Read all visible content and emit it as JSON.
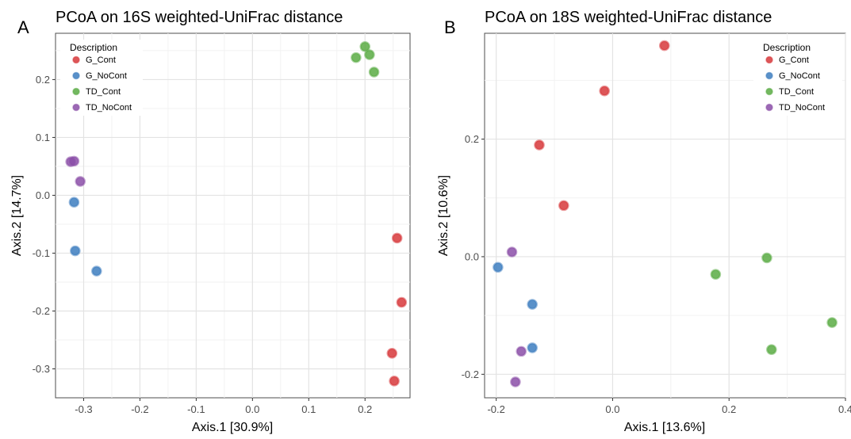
{
  "chart_data": [
    {
      "type": "scatter",
      "panel_label": "A",
      "title": "PCoA on 16S weighted-UniFrac distance",
      "xlabel": "Axis.1   [30.9%]",
      "ylabel": "Axis.2   [14.7%]",
      "xlim": [
        -0.35,
        0.28
      ],
      "ylim": [
        -0.35,
        0.28
      ],
      "x_ticks": [
        -0.3,
        -0.2,
        -0.1,
        0.0,
        0.1,
        0.2
      ],
      "x_tick_labels": [
        "-0.3",
        "-0.2",
        "-0.1",
        "0.0",
        "0.1",
        "0.2"
      ],
      "y_ticks": [
        -0.3,
        -0.2,
        -0.1,
        0.0,
        0.1,
        0.2
      ],
      "y_tick_labels": [
        "-0.3",
        "-0.2",
        "-0.1",
        "0.0",
        "0.1",
        "0.2"
      ],
      "grid": true,
      "legend": {
        "title": "Description",
        "position": "top-left"
      },
      "series": [
        {
          "name": "G_Cont",
          "color": "#d7383b",
          "points": [
            [
              0.257,
              -0.074
            ],
            [
              0.265,
              -0.185
            ],
            [
              0.248,
              -0.273
            ],
            [
              0.252,
              -0.321
            ]
          ]
        },
        {
          "name": "G_NoCont",
          "color": "#3d7ec0",
          "points": [
            [
              -0.317,
              -0.012
            ],
            [
              -0.315,
              -0.096
            ],
            [
              -0.277,
              -0.131
            ]
          ]
        },
        {
          "name": "TD_Cont",
          "color": "#5aac44",
          "points": [
            [
              0.2,
              0.257
            ],
            [
              0.208,
              0.243
            ],
            [
              0.184,
              0.238
            ],
            [
              0.216,
              0.213
            ]
          ]
        },
        {
          "name": "TD_NoCont",
          "color": "#8b4fa8",
          "points": [
            [
              -0.323,
              0.058
            ],
            [
              -0.317,
              0.059
            ],
            [
              -0.306,
              0.024
            ]
          ]
        }
      ]
    },
    {
      "type": "scatter",
      "panel_label": "B",
      "title": "PCoA on 18S weighted-UniFrac distance",
      "xlabel": "Axis.1   [13.6%]",
      "ylabel": "Axis.2   [10.6%]",
      "xlim": [
        -0.22,
        0.4
      ],
      "ylim": [
        -0.24,
        0.38
      ],
      "x_ticks": [
        -0.2,
        0.0,
        0.2,
        0.4
      ],
      "x_tick_labels": [
        "-0.2",
        "0.0",
        "0.2",
        "0.4"
      ],
      "y_ticks": [
        -0.2,
        0.0,
        0.2
      ],
      "y_tick_labels": [
        "-0.2",
        "0.0",
        "0.2"
      ],
      "grid": true,
      "legend": {
        "title": "Description",
        "position": "top-right"
      },
      "series": [
        {
          "name": "G_Cont",
          "color": "#d7383b",
          "points": [
            [
              0.089,
              0.359
            ],
            [
              -0.014,
              0.282
            ],
            [
              -0.126,
              0.19
            ],
            [
              -0.084,
              0.087
            ]
          ]
        },
        {
          "name": "G_NoCont",
          "color": "#3d7ec0",
          "points": [
            [
              -0.197,
              -0.018
            ],
            [
              -0.138,
              -0.081
            ],
            [
              -0.138,
              -0.155
            ]
          ]
        },
        {
          "name": "TD_Cont",
          "color": "#5aac44",
          "points": [
            [
              0.265,
              -0.002
            ],
            [
              0.177,
              -0.03
            ],
            [
              0.377,
              -0.112
            ],
            [
              0.273,
              -0.158
            ]
          ]
        },
        {
          "name": "TD_NoCont",
          "color": "#8b4fa8",
          "points": [
            [
              -0.173,
              0.008
            ],
            [
              -0.157,
              -0.161
            ],
            [
              -0.167,
              -0.213
            ]
          ]
        }
      ]
    }
  ]
}
